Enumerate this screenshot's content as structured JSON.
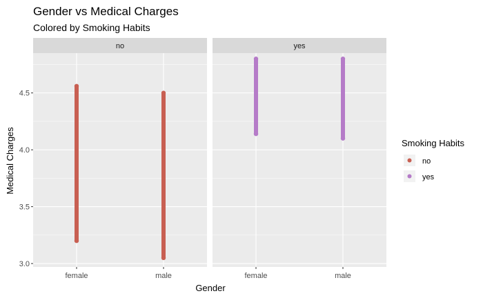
{
  "chart_data": {
    "type": "scatter",
    "title": "Gender vs Medical Charges",
    "subtitle": "Colored by Smoking Habits",
    "xlabel": "Gender",
    "ylabel": "Medical Charges",
    "categories": [
      "female",
      "male"
    ],
    "ylim": [
      2.97,
      4.85
    ],
    "yticks": [
      3.0,
      3.5,
      4.0,
      4.5
    ],
    "ytick_labels": [
      "3.0",
      "3.5",
      "4.0",
      "4.5"
    ],
    "grid": true,
    "facets": [
      {
        "strip": "no",
        "series": [
          {
            "name": "no",
            "category": "female",
            "min": 3.2,
            "max": 4.56
          },
          {
            "name": "no",
            "category": "male",
            "min": 3.05,
            "max": 4.5
          }
        ]
      },
      {
        "strip": "yes",
        "series": [
          {
            "name": "yes",
            "category": "female",
            "min": 4.14,
            "max": 4.8
          },
          {
            "name": "yes",
            "category": "male",
            "min": 4.1,
            "max": 4.8
          }
        ]
      }
    ],
    "legend": {
      "title": "Smoking Habits",
      "position": "right",
      "entries": [
        {
          "label": "no",
          "color": "#c85f52"
        },
        {
          "label": "yes",
          "color": "#b57bc8"
        }
      ]
    },
    "colors": {
      "panel_bg": "#ebebeb",
      "strip_bg": "#d9d9d9",
      "grid": "#ffffff"
    }
  }
}
